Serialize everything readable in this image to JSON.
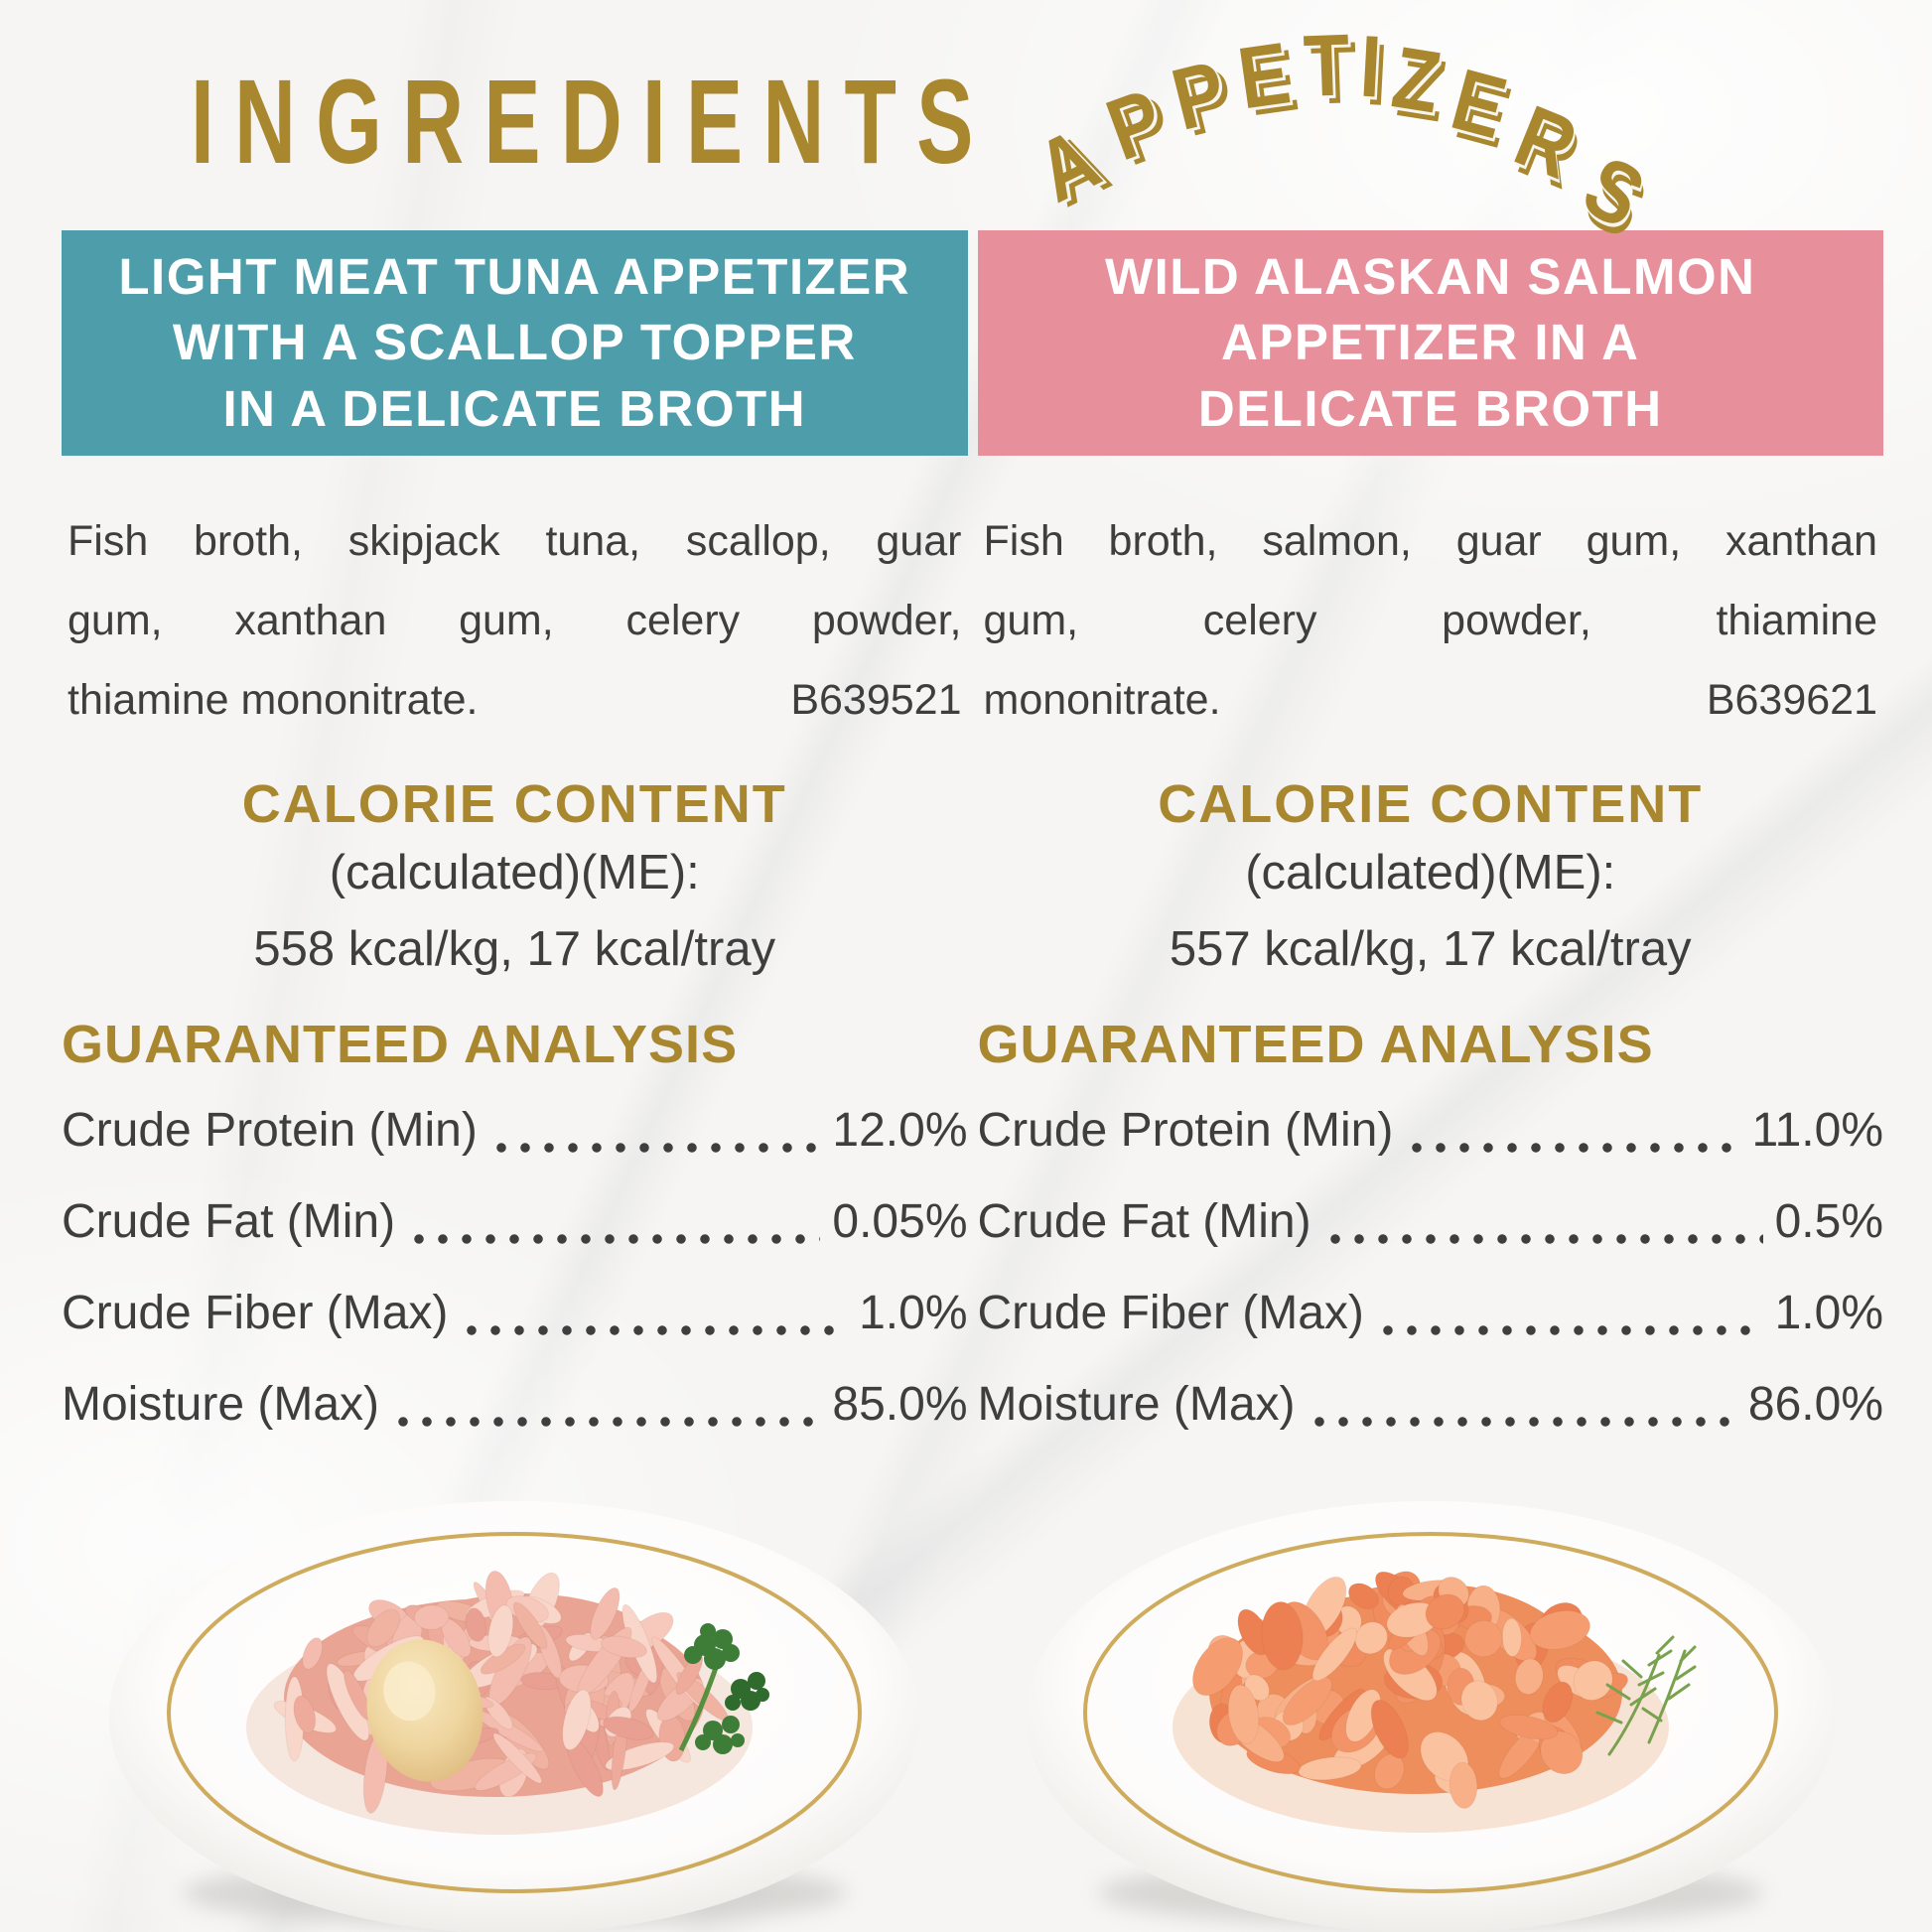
{
  "page": {
    "title": "INGREDIENTS",
    "arc_title": "APPETIZERS"
  },
  "colors": {
    "gold_accent": "#a8872f",
    "teal_header": "#4d9daa",
    "pink_header": "#e78f9a",
    "body_text": "#3e3e3e",
    "plate_ring_gold": "#c9a24b",
    "tuna_food_palette": [
      "#f3bcae",
      "#eeab9c",
      "#f7c9bc",
      "#e9a092",
      "#f9d6ca",
      "#f0b3a2"
    ],
    "tuna_food_base": "#eaa493",
    "salmon_food_palette": [
      "#f59d70",
      "#f08c5d",
      "#f8b088",
      "#ec8052",
      "#fbc29f",
      "#f29468"
    ],
    "salmon_food_base": "#ee8e5c"
  },
  "columns": [
    {
      "id": "tuna",
      "header_color": "#4d9daa",
      "header_lines": [
        "LIGHT MEAT TUNA APPETIZER",
        "WITH A SCALLOP TOPPER",
        "IN A DELICATE BROTH"
      ],
      "ingredients_lines": [
        "Fish broth, skipjack tuna, scallop, guar",
        "gum, xanthan gum, celery powder,",
        "thiamine mononitrate."
      ],
      "batch_code": "B639521",
      "calorie": {
        "heading": "CALORIE CONTENT",
        "line1": "(calculated)(ME):",
        "line2": "558 kcal/kg, 17 kcal/tray"
      },
      "analysis": {
        "heading": "GUARANTEED ANALYSIS",
        "rows": [
          {
            "label": "Crude Protein (Min)",
            "value": "12.0%"
          },
          {
            "label": "Crude Fat (Min)",
            "value": "0.05%"
          },
          {
            "label": "Crude Fiber (Max)",
            "value": "1.0%"
          },
          {
            "label": "Moisture (Max)",
            "value": "85.0%"
          }
        ]
      }
    },
    {
      "id": "salmon",
      "header_color": "#e78f9a",
      "header_lines": [
        "WILD ALASKAN SALMON",
        "APPETIZER IN A",
        "DELICATE BROTH"
      ],
      "ingredients_lines": [
        "Fish broth, salmon, guar gum, xanthan",
        "gum, celery powder, thiamine",
        "mononitrate."
      ],
      "batch_code": "B639621",
      "calorie": {
        "heading": "CALORIE CONTENT",
        "line1": "(calculated)(ME):",
        "line2": "557 kcal/kg, 17 kcal/tray"
      },
      "analysis": {
        "heading": "GUARANTEED ANALYSIS",
        "rows": [
          {
            "label": "Crude Protein (Min)",
            "value": "11.0%"
          },
          {
            "label": "Crude Fat (Min)",
            "value": "0.5%"
          },
          {
            "label": "Crude Fiber (Max)",
            "value": "1.0%"
          },
          {
            "label": "Moisture (Max)",
            "value": "86.0%"
          }
        ]
      }
    }
  ]
}
